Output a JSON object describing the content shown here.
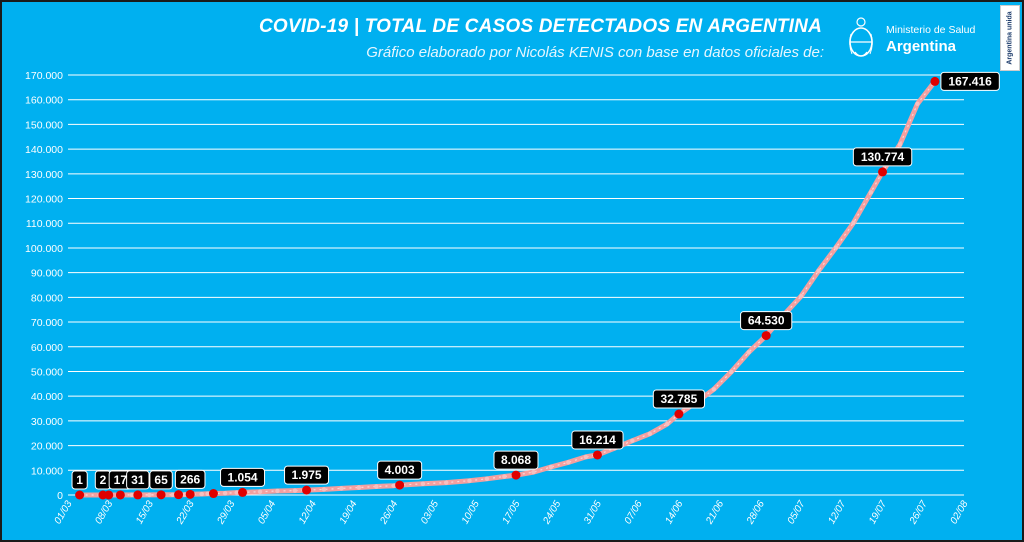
{
  "header": {
    "title": "COVID-19  |  TOTAL DE CASOS DETECTADOS EN ARGENTINA",
    "subtitle": "Gráfico elaborado por Nicolás KENIS con base en datos oficiales de:",
    "ministry": "Ministerio de Salud",
    "country": "Argentina",
    "badge": "Argentina unida"
  },
  "colors": {
    "background": "#00b0f0",
    "grid": "#ffffff",
    "line": "#f4a0a0",
    "marker": "#e00000",
    "label_bg": "#000000"
  },
  "chart_data": {
    "type": "line",
    "title": "",
    "xlabel": "",
    "ylabel": "",
    "ylim": [
      0,
      170000
    ],
    "xlim": [
      "2020-03-01",
      "2020-08-02"
    ],
    "ytick_labels": [
      "0",
      "10.000",
      "20.000",
      "30.000",
      "40.000",
      "50.000",
      "60.000",
      "70.000",
      "80.000",
      "90.000",
      "100.000",
      "110.000",
      "120.000",
      "130.000",
      "140.000",
      "150.000",
      "160.000",
      "170.000"
    ],
    "xtick_labels": [
      "01/03",
      "08/03",
      "15/03",
      "22/03",
      "29/03",
      "05/04",
      "12/04",
      "19/04",
      "26/04",
      "03/05",
      "10/05",
      "17/05",
      "24/05",
      "31/05",
      "07/06",
      "14/06",
      "21/06",
      "28/06",
      "05/07",
      "12/07",
      "19/07",
      "26/07",
      "02/08"
    ],
    "series": [
      {
        "points": [
          [
            "2020-03-03",
            1
          ],
          [
            "2020-03-07",
            2
          ],
          [
            "2020-03-08",
            12
          ],
          [
            "2020-03-10",
            17
          ],
          [
            "2020-03-12",
            21
          ],
          [
            "2020-03-13",
            31
          ],
          [
            "2020-03-15",
            45
          ],
          [
            "2020-03-17",
            65
          ],
          [
            "2020-03-19",
            97
          ],
          [
            "2020-03-20",
            128
          ],
          [
            "2020-03-21",
            158
          ],
          [
            "2020-03-22",
            266
          ],
          [
            "2020-03-24",
            387
          ],
          [
            "2020-03-25",
            502
          ],
          [
            "2020-03-26",
            589
          ],
          [
            "2020-03-28",
            745
          ],
          [
            "2020-03-30",
            966
          ],
          [
            "2020-03-31",
            1054
          ],
          [
            "2020-04-03",
            1353
          ],
          [
            "2020-04-06",
            1628
          ],
          [
            "2020-04-09",
            1795
          ],
          [
            "2020-04-11",
            1975
          ],
          [
            "2020-04-14",
            2277
          ],
          [
            "2020-04-17",
            2669
          ],
          [
            "2020-04-20",
            3031
          ],
          [
            "2020-04-23",
            3435
          ],
          [
            "2020-04-26",
            3780
          ],
          [
            "2020-04-27",
            4003
          ],
          [
            "2020-05-01",
            4532
          ],
          [
            "2020-05-05",
            5020
          ],
          [
            "2020-05-09",
            5776
          ],
          [
            "2020-05-12",
            6563
          ],
          [
            "2020-05-15",
            7479
          ],
          [
            "2020-05-17",
            8068
          ],
          [
            "2020-05-20",
            9283
          ],
          [
            "2020-05-23",
            11353
          ],
          [
            "2020-05-26",
            13228
          ],
          [
            "2020-05-29",
            15419
          ],
          [
            "2020-05-31",
            16214
          ],
          [
            "2020-06-03",
            18977
          ],
          [
            "2020-06-06",
            21978
          ],
          [
            "2020-06-09",
            24761
          ],
          [
            "2020-06-12",
            28764
          ],
          [
            "2020-06-14",
            32785
          ],
          [
            "2020-06-17",
            37510
          ],
          [
            "2020-06-20",
            42785
          ],
          [
            "2020-06-23",
            49851
          ],
          [
            "2020-06-26",
            57744
          ],
          [
            "2020-06-29",
            64530
          ],
          [
            "2020-07-02",
            72786
          ],
          [
            "2020-07-05",
            80447
          ],
          [
            "2020-07-08",
            90693
          ],
          [
            "2020-07-11",
            100166
          ],
          [
            "2020-07-14",
            110191
          ],
          [
            "2020-07-17",
            122524
          ],
          [
            "2020-07-19",
            130774
          ],
          [
            "2020-07-22",
            141900
          ],
          [
            "2020-07-25",
            158334
          ],
          [
            "2020-07-28",
            167416
          ]
        ]
      }
    ],
    "labels": [
      {
        "date": "2020-03-03",
        "value": 1,
        "text": "1"
      },
      {
        "date": "2020-03-07",
        "value": 2,
        "text": "2"
      },
      {
        "date": "2020-03-10",
        "value": 17,
        "text": "17"
      },
      {
        "date": "2020-03-13",
        "value": 31,
        "text": "31"
      },
      {
        "date": "2020-03-17",
        "value": 65,
        "text": "65"
      },
      {
        "date": "2020-03-22",
        "value": 266,
        "text": "266"
      },
      {
        "date": "2020-03-31",
        "value": 1054,
        "text": "1.054"
      },
      {
        "date": "2020-04-11",
        "value": 1975,
        "text": "1.975"
      },
      {
        "date": "2020-04-27",
        "value": 4003,
        "text": "4.003"
      },
      {
        "date": "2020-05-17",
        "value": 8068,
        "text": "8.068"
      },
      {
        "date": "2020-05-31",
        "value": 16214,
        "text": "16.214"
      },
      {
        "date": "2020-06-14",
        "value": 32785,
        "text": "32.785"
      },
      {
        "date": "2020-06-29",
        "value": 64530,
        "text": "64.530"
      },
      {
        "date": "2020-07-19",
        "value": 130774,
        "text": "130.774"
      },
      {
        "date": "2020-07-28",
        "value": 167416,
        "text": "167.416"
      }
    ],
    "extra_markers": [
      {
        "date": "2020-03-08",
        "value": 12
      },
      {
        "date": "2020-03-20",
        "value": 128
      },
      {
        "date": "2020-03-26",
        "value": 589
      }
    ],
    "grid": true,
    "legend": "none"
  }
}
